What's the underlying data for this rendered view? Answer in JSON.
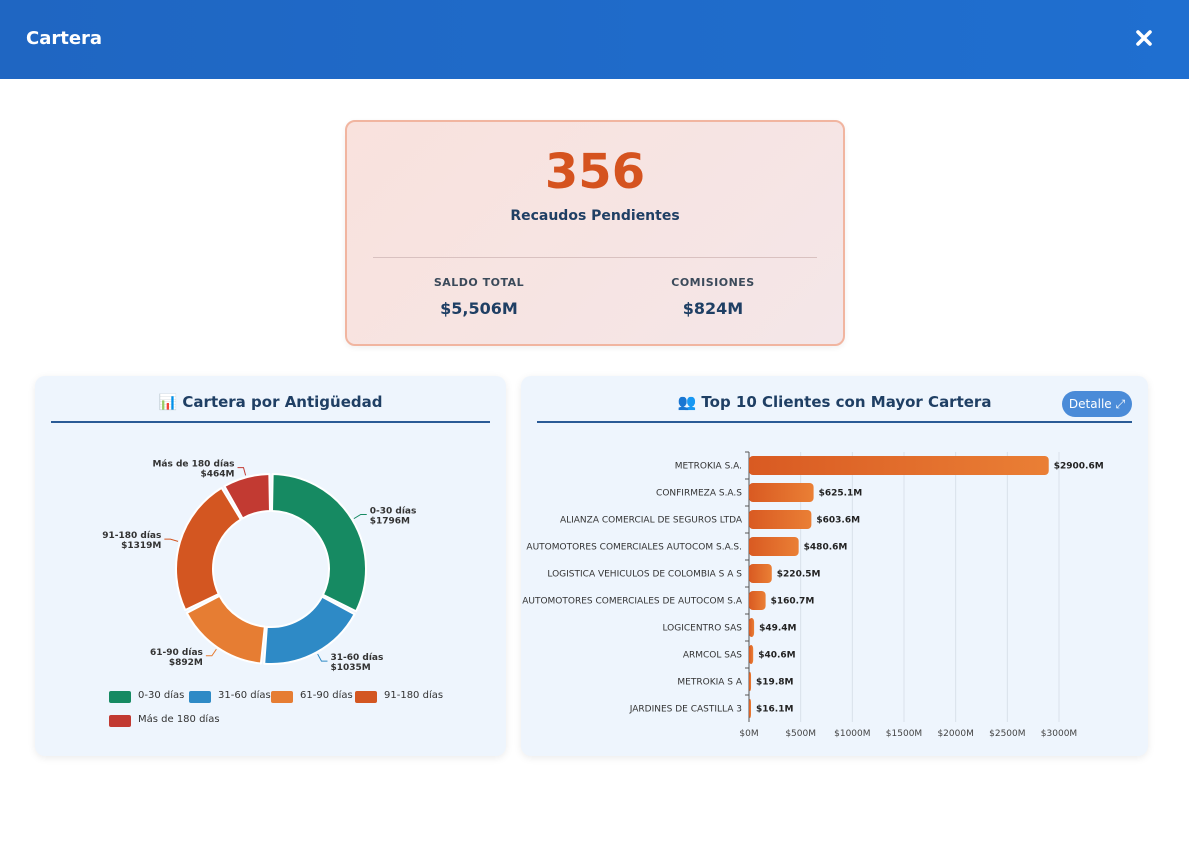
{
  "header": {
    "title": "Cartera"
  },
  "summary": {
    "count": "356",
    "count_label": "Recaudos Pendientes",
    "stats": [
      {
        "label": "SALDO TOTAL",
        "value": "$5,506M"
      },
      {
        "label": "COMISIONES",
        "value": "$824M"
      }
    ]
  },
  "donut_card": {
    "title": "📊 Cartera por Antigüedad"
  },
  "bar_card": {
    "title": "👥 Top 10 Clientes con Mayor Cartera",
    "detail_label": "Detalle ⤢"
  },
  "chart_data": [
    {
      "type": "pie",
      "title": "Cartera por Antigüedad",
      "categories": [
        "0-30 días",
        "31-60 días",
        "61-90 días",
        "91-180 días",
        "Más de 180 días"
      ],
      "values": [
        1796,
        1035,
        892,
        1319,
        464
      ],
      "value_labels": [
        "$1796M",
        "$1035M",
        "$892M",
        "$1319M",
        "$464M"
      ],
      "colors": [
        "#168a62",
        "#2e8ac6",
        "#e67d33",
        "#d35621",
        "#c23a32"
      ],
      "legend": "bottom"
    },
    {
      "type": "bar",
      "orientation": "horizontal",
      "title": "Top 10 Clientes con Mayor Cartera",
      "categories": [
        "METROKIA S.A.",
        "CONFIRMEZA S.A.S",
        "ALIANZA COMERCIAL DE SEGUROS LTDA",
        "AUTOMOTORES COMERCIALES AUTOCOM S.A.S.",
        "LOGISTICA VEHICULOS DE COLOMBIA S A S",
        "AUTOMOTORES COMERCIALES DE AUTOCOM S.A",
        "LOGICENTRO SAS",
        "ARMCOL SAS",
        "METROKIA S A",
        "JARDINES DE CASTILLA 3"
      ],
      "values": [
        2900.6,
        625.1,
        603.6,
        480.6,
        220.5,
        160.7,
        49.4,
        40.6,
        19.8,
        16.1
      ],
      "value_labels": [
        "$2900.6M",
        "$625.1M",
        "$603.6M",
        "$480.6M",
        "$220.5M",
        "$160.7M",
        "$49.4M",
        "$40.6M",
        "$19.8M",
        "$16.1M"
      ],
      "xticks": [
        "$0M",
        "$500M",
        "$1000M",
        "$1500M",
        "$2000M",
        "$2500M",
        "$3000M"
      ],
      "xlim": [
        0,
        3000
      ],
      "grid": true,
      "color": "#e06a28"
    }
  ]
}
